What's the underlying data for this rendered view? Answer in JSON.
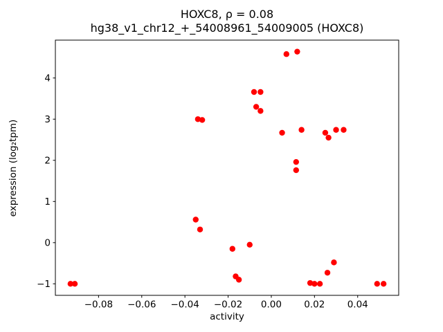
{
  "chart_data": {
    "type": "scatter",
    "title": "HOXC8, ρ = 0.08",
    "subtitle": "hg38_v1_chr12_+_54008961_54009005 (HOXC8)",
    "xlabel": "activity",
    "ylabel": "expression (log₂tpm)",
    "xlim": [
      -0.1,
      0.059
    ],
    "ylim": [
      -1.28,
      4.92
    ],
    "grid": false,
    "legend": null,
    "marker_color": "#ff0000",
    "marker_radius": 4.2,
    "xticks": {
      "values": [
        -0.08,
        -0.06,
        -0.04,
        -0.02,
        0.0,
        0.02,
        0.04
      ],
      "labels": [
        "−0.08",
        "−0.06",
        "−0.04",
        "−0.02",
        "0.00",
        "0.02",
        "0.04"
      ]
    },
    "yticks": {
      "values": [
        -1,
        0,
        1,
        2,
        3,
        4
      ],
      "labels": [
        "−1",
        "0",
        "1",
        "2",
        "3",
        "4"
      ]
    },
    "points": [
      [
        -0.093,
        -1.0
      ],
      [
        -0.091,
        -1.0
      ],
      [
        -0.034,
        3.0
      ],
      [
        -0.032,
        2.98
      ],
      [
        -0.035,
        0.56
      ],
      [
        -0.033,
        0.32
      ],
      [
        -0.018,
        -0.15
      ],
      [
        -0.0165,
        -0.82
      ],
      [
        -0.015,
        -0.9
      ],
      [
        -0.01,
        -0.05
      ],
      [
        -0.008,
        3.66
      ],
      [
        -0.005,
        3.66
      ],
      [
        -0.007,
        3.3
      ],
      [
        -0.005,
        3.2
      ],
      [
        0.005,
        2.67
      ],
      [
        0.007,
        4.58
      ],
      [
        0.012,
        4.64
      ],
      [
        0.0115,
        1.96
      ],
      [
        0.0115,
        1.76
      ],
      [
        0.014,
        2.74
      ],
      [
        0.018,
        -0.98
      ],
      [
        0.02,
        -1.0
      ],
      [
        0.0225,
        -1.0
      ],
      [
        0.025,
        2.67
      ],
      [
        0.0265,
        2.55
      ],
      [
        0.026,
        -0.73
      ],
      [
        0.029,
        -0.48
      ],
      [
        0.03,
        2.74
      ],
      [
        0.0335,
        2.74
      ],
      [
        0.049,
        -1.0
      ],
      [
        0.052,
        -1.0
      ]
    ]
  }
}
